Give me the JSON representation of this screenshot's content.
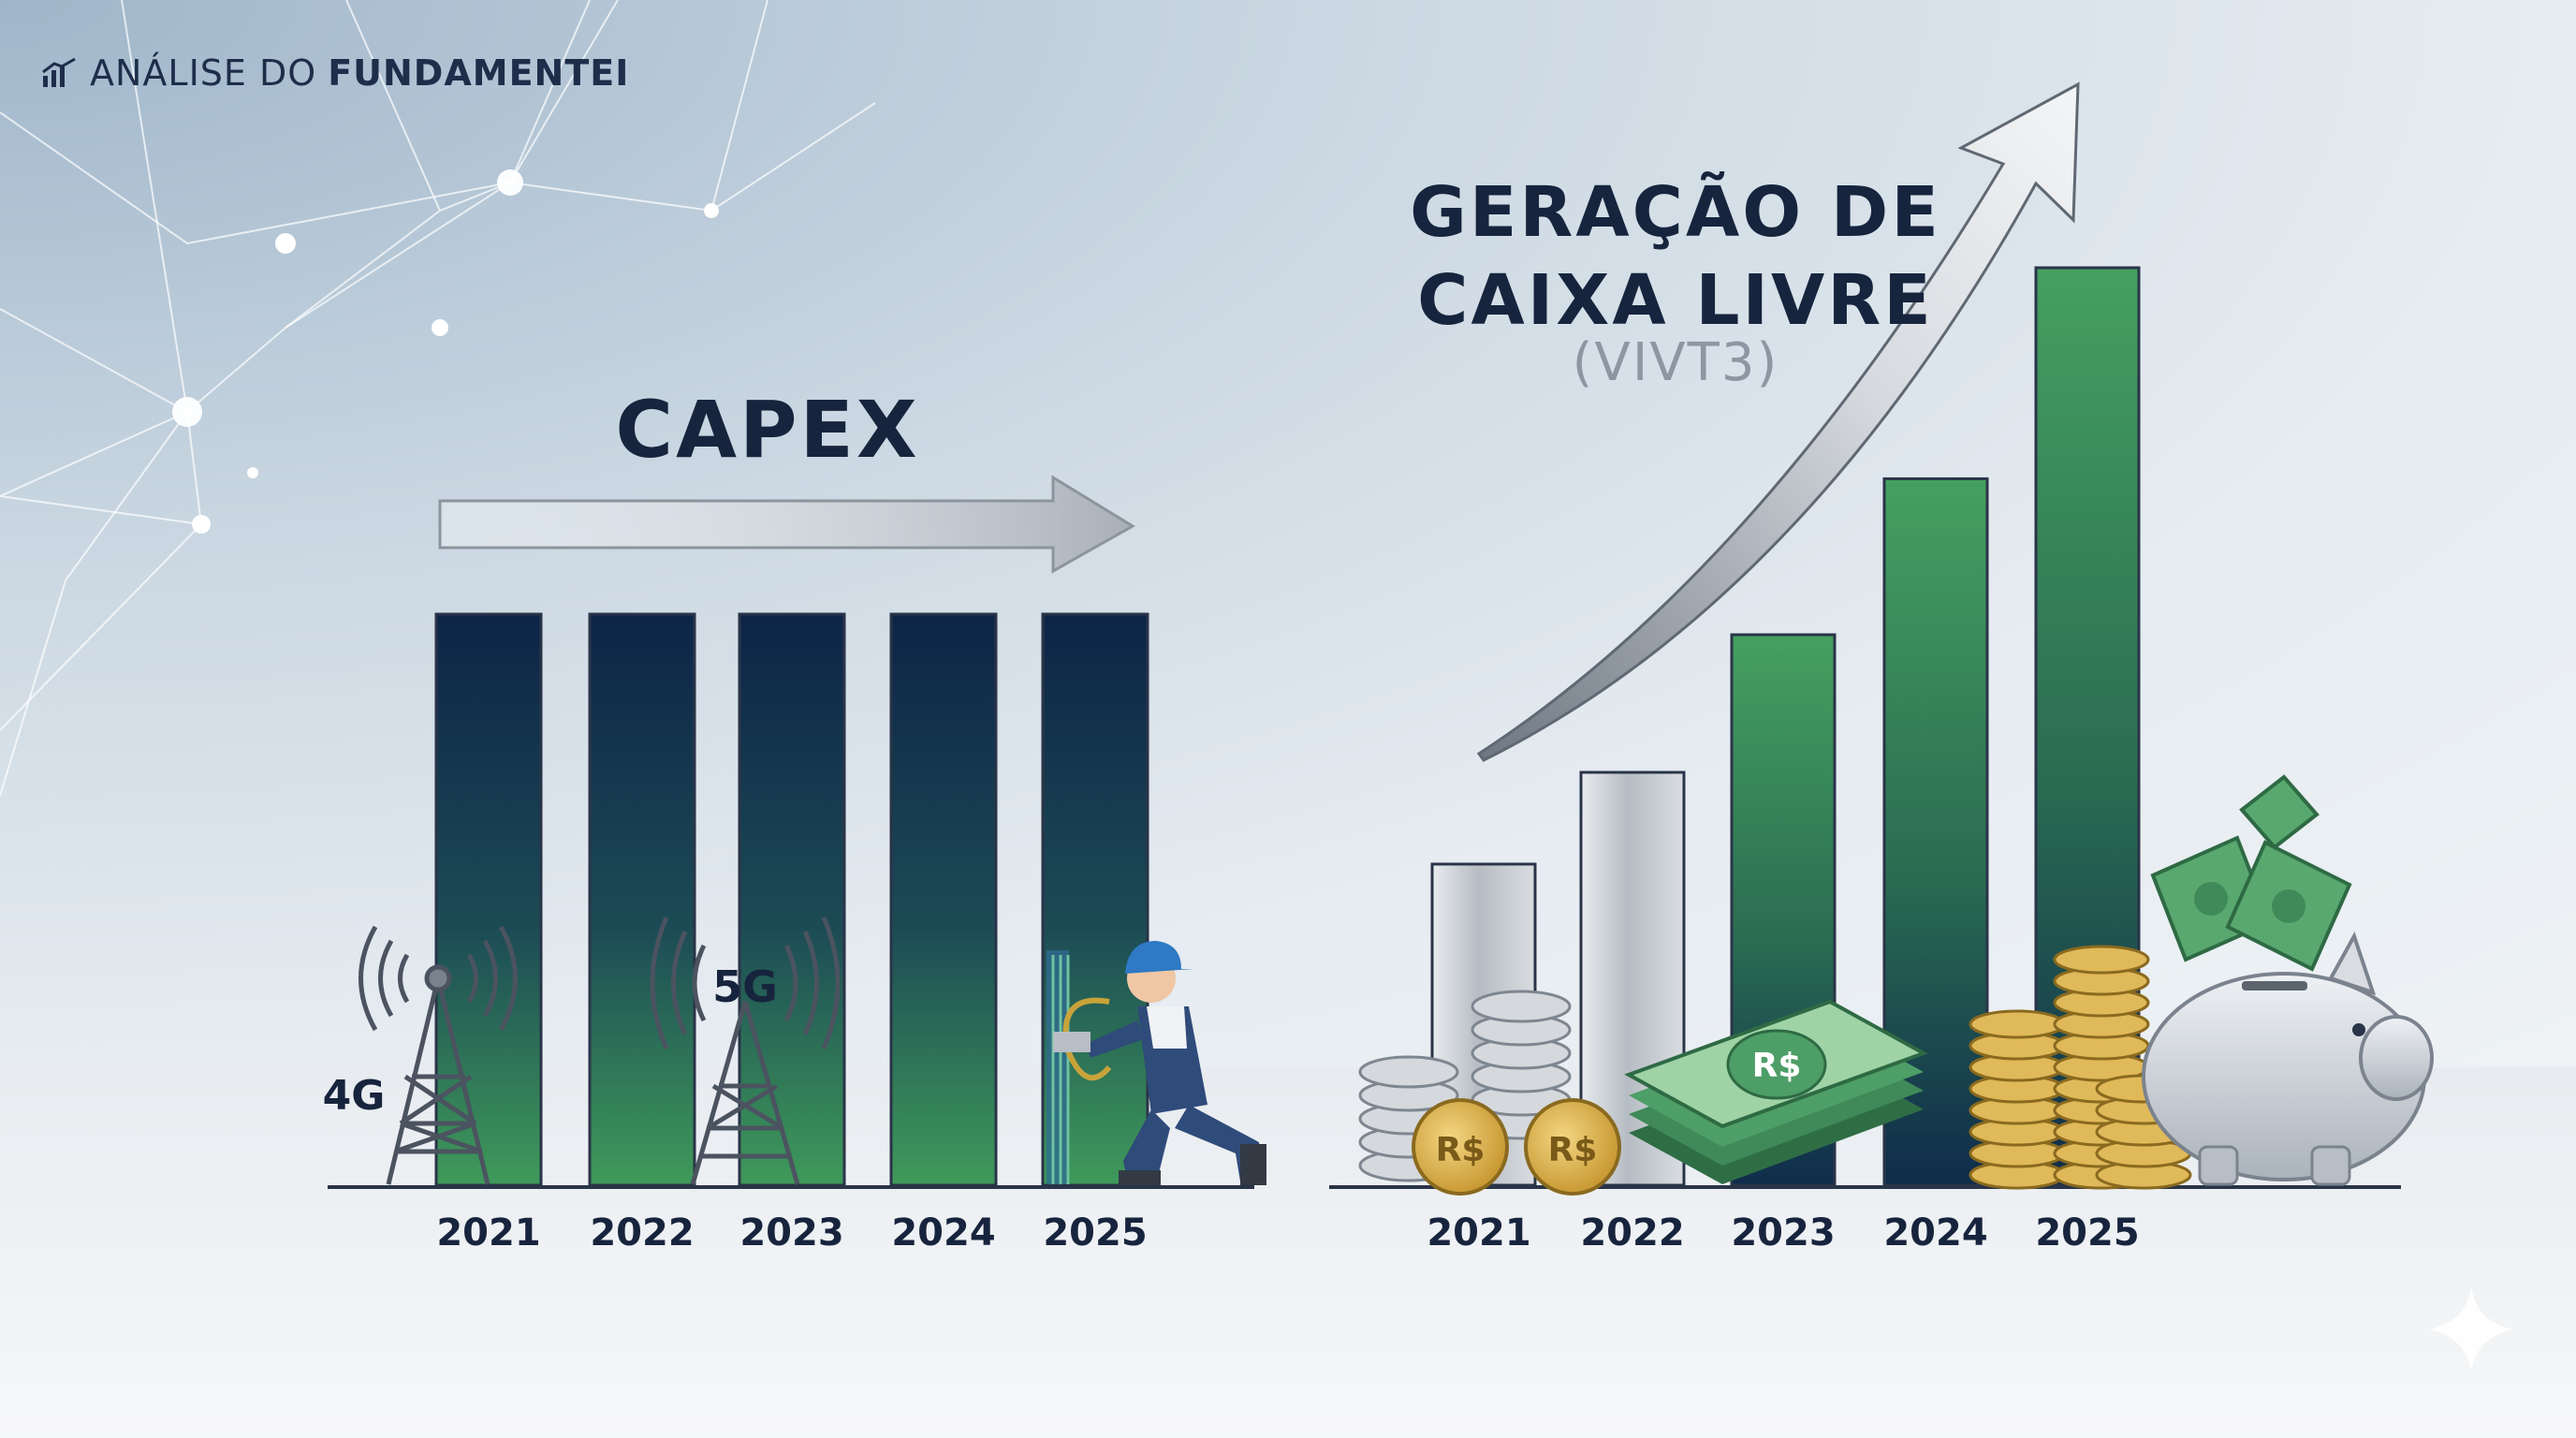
{
  "brand": {
    "prefix": "ANÁLISE DO",
    "name": "FUNDAMENTEI"
  },
  "colors": {
    "navy": "#0f2a4f",
    "green": "#3e8f57",
    "silver": "#c3c8ce",
    "ink": "#17243d"
  },
  "chart_data": [
    {
      "type": "bar",
      "title": "CAPEX",
      "categories": [
        "2021",
        "2022",
        "2023",
        "2024",
        "2025"
      ],
      "values": [
        100,
        100,
        100,
        100,
        100
      ],
      "ylim": [
        0,
        100
      ],
      "annotations": {
        "tower_4g": "4G",
        "tower_5g": "5G"
      },
      "grid": false
    },
    {
      "type": "bar",
      "title": "GERAÇÃO DE CAIXA LIVRE",
      "subtitle": "(VIVT3)",
      "categories": [
        "2021",
        "2022",
        "2023",
        "2024",
        "2025"
      ],
      "values": [
        35,
        45,
        60,
        77,
        100
      ],
      "ylim": [
        0,
        100
      ],
      "annotations": {
        "currency": "R$"
      },
      "grid": false
    }
  ]
}
